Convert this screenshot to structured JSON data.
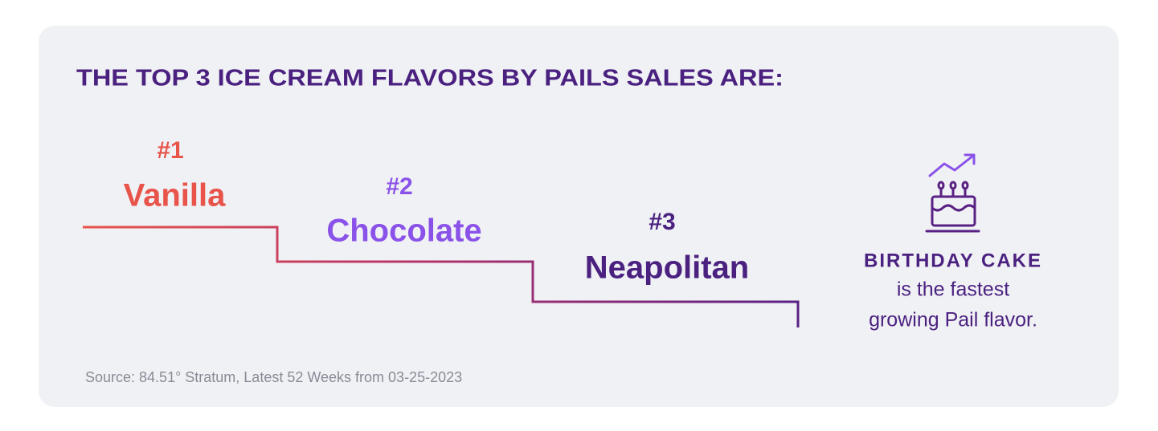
{
  "header": {
    "title": "THE TOP 3 ICE CREAM FLAVORS BY PAILS SALES ARE:"
  },
  "podium": [
    {
      "rank": "#1",
      "flavor": "Vanilla"
    },
    {
      "rank": "#2",
      "flavor": "Chocolate"
    },
    {
      "rank": "#3",
      "flavor": "Neapolitan"
    }
  ],
  "callout": {
    "highlight": "BIRTHDAY CAKE",
    "lines": [
      "is the fastest",
      "growing Pail flavor."
    ]
  },
  "source": "Source: 84.51° Stratum, Latest 52 Weeks from 03-25-2023"
}
